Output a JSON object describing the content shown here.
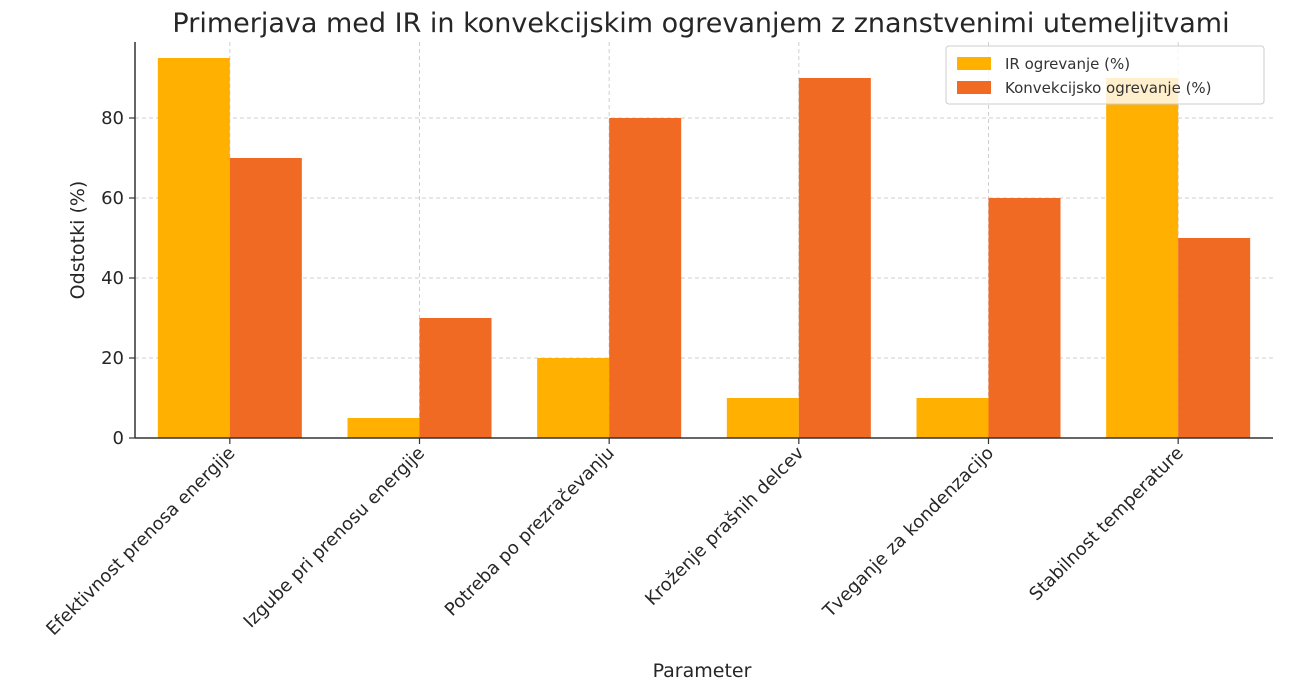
{
  "chart_data": {
    "type": "bar",
    "title": "Primerjava med IR in konvekcijskim ogrevanjem z znanstvenimi utemeljitvami",
    "xlabel": "Parameter",
    "ylabel": "Odstotki (%)",
    "categories": [
      "Efektivnost prenosa energije",
      "Izgube pri prenosu energije",
      "Potreba po prezračevanju",
      "Kroženje prašnih delcev",
      "Tveganje za kondenzacijo",
      "Stabilnost temperature"
    ],
    "series": [
      {
        "name": "IR ogrevanje (%)",
        "values": [
          95,
          5,
          20,
          10,
          10,
          90
        ],
        "color": "#FFB000"
      },
      {
        "name": "Konvekcijsko ogrevanje (%)",
        "values": [
          70,
          30,
          80,
          90,
          60,
          50
        ],
        "color": "#F06A23"
      }
    ],
    "ylim": [
      0,
      99
    ],
    "yticks": [
      0,
      20,
      40,
      60,
      80
    ],
    "grid": true,
    "legend_position": "top-right"
  }
}
